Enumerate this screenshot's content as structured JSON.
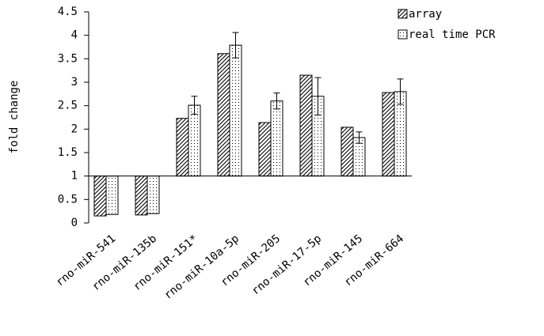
{
  "chart_data": {
    "type": "bar",
    "y_label": "fold change",
    "categories": [
      "rno-miR-541",
      "rno-miR-135b",
      "rno-miR-151*",
      "rno-miR-10a-5p",
      "rno-miR-205",
      "rno-miR-17-5p",
      "rno-miR-145",
      "rno-miR-664"
    ],
    "series": [
      {
        "name": "array",
        "values": [
          0.15,
          0.17,
          2.23,
          3.61,
          2.14,
          3.15,
          2.04,
          2.78
        ]
      },
      {
        "name": "real time PCR",
        "values": [
          0.18,
          0.2,
          2.51,
          3.79,
          2.6,
          2.7,
          1.82,
          2.8
        ],
        "errors": [
          null,
          null,
          0.19,
          0.27,
          0.17,
          0.4,
          0.12,
          0.27
        ]
      }
    ],
    "baseline": 1,
    "ylim": [
      0,
      4.5
    ],
    "yticks": [
      0,
      0.5,
      1,
      1.5,
      2,
      2.5,
      3,
      3.5,
      4,
      4.5
    ],
    "legend": "top-right"
  }
}
